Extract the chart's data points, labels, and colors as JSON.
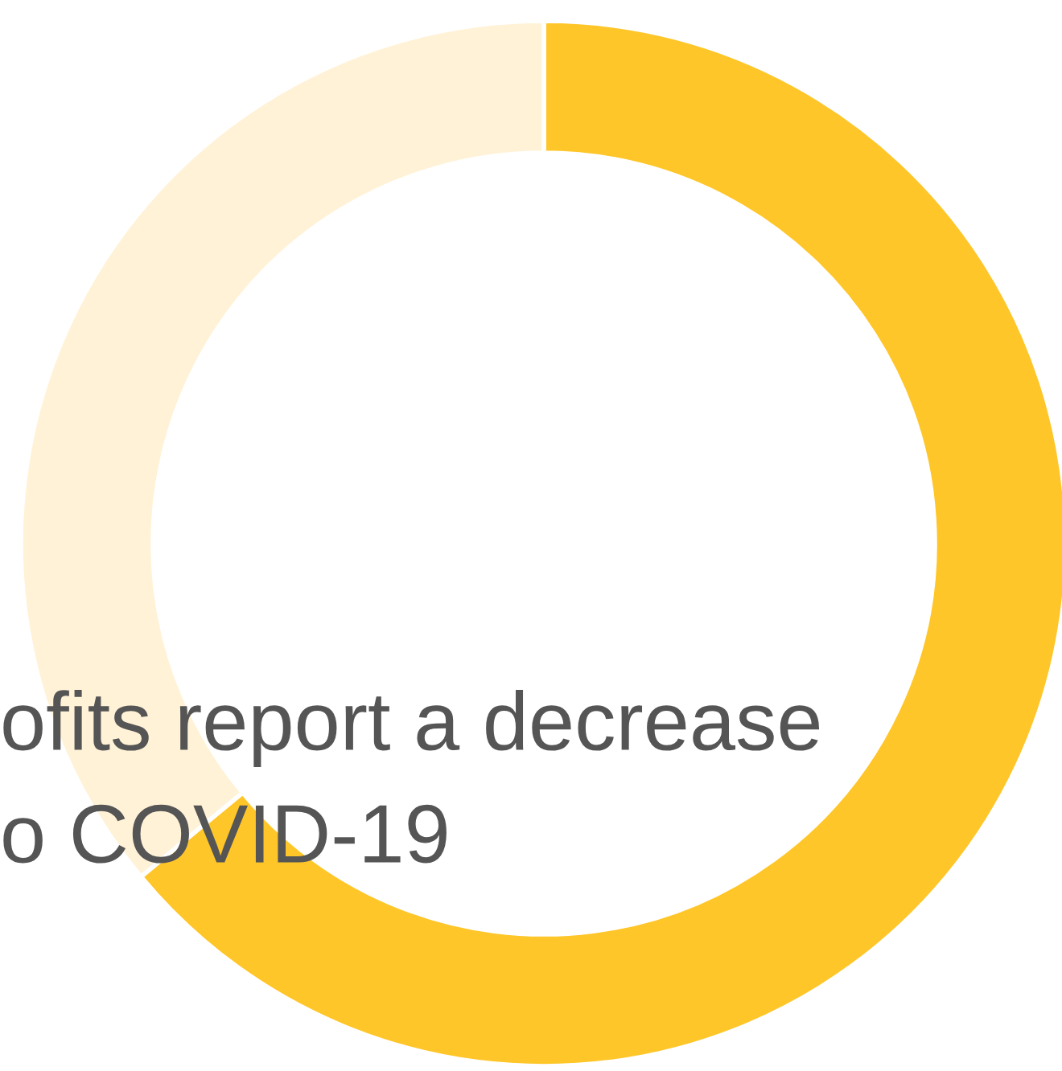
{
  "chart_data": {
    "type": "donut",
    "categories": [
      null,
      null
    ],
    "values": [
      64,
      36
    ],
    "colors": [
      "#ffc629",
      "#fff2d6"
    ],
    "annotations": [
      "ofits report a decrease",
      "o COVID-19"
    ]
  }
}
